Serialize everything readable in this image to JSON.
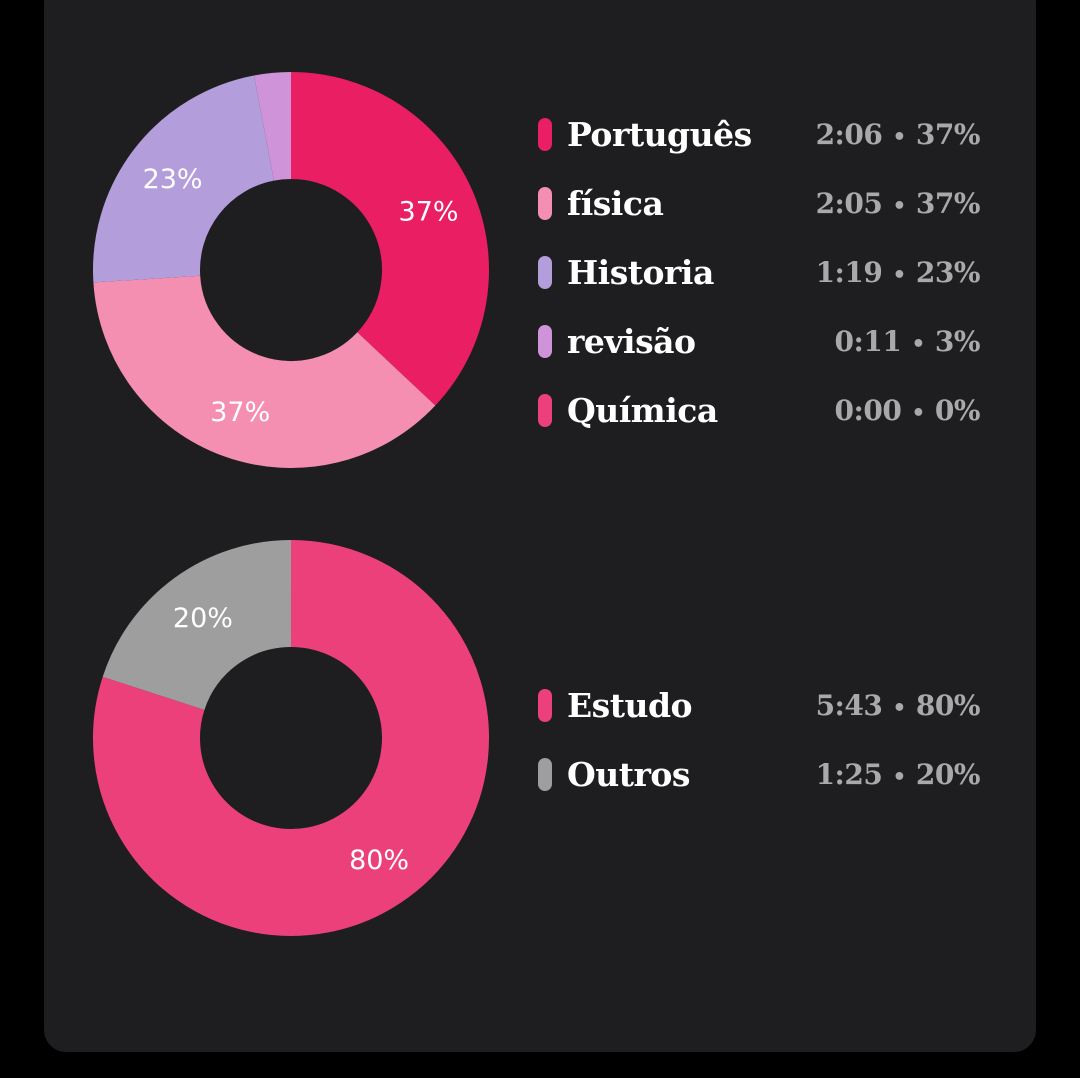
{
  "chart_data": [
    {
      "type": "pie",
      "slices": [
        {
          "label": "Português",
          "time": "2:06",
          "pct_text": "37%",
          "value": 37,
          "color": "#e91e63",
          "slice_label": "37%"
        },
        {
          "label": "física",
          "time": "2:05",
          "pct_text": "37%",
          "value": 37,
          "color": "#f48fb1",
          "slice_label": "37%"
        },
        {
          "label": "Historia",
          "time": "1:19",
          "pct_text": "23%",
          "value": 23,
          "color": "#b39ddb",
          "slice_label": "23%"
        },
        {
          "label": "revisão",
          "time": "0:11",
          "pct_text": "3%",
          "value": 3,
          "color": "#ce93d8",
          "slice_label": ""
        },
        {
          "label": "Química",
          "time": "0:00",
          "pct_text": "0%",
          "value": 0,
          "color": "#ec407a",
          "slice_label": ""
        }
      ]
    },
    {
      "type": "pie",
      "slices": [
        {
          "label": "Estudo",
          "time": "5:43",
          "pct_text": "80%",
          "value": 80,
          "color": "#ec407a",
          "slice_label": "80%"
        },
        {
          "label": "Outros",
          "time": "1:25",
          "pct_text": "20%",
          "value": 20,
          "color": "#9e9e9e",
          "slice_label": "20%"
        }
      ]
    }
  ]
}
